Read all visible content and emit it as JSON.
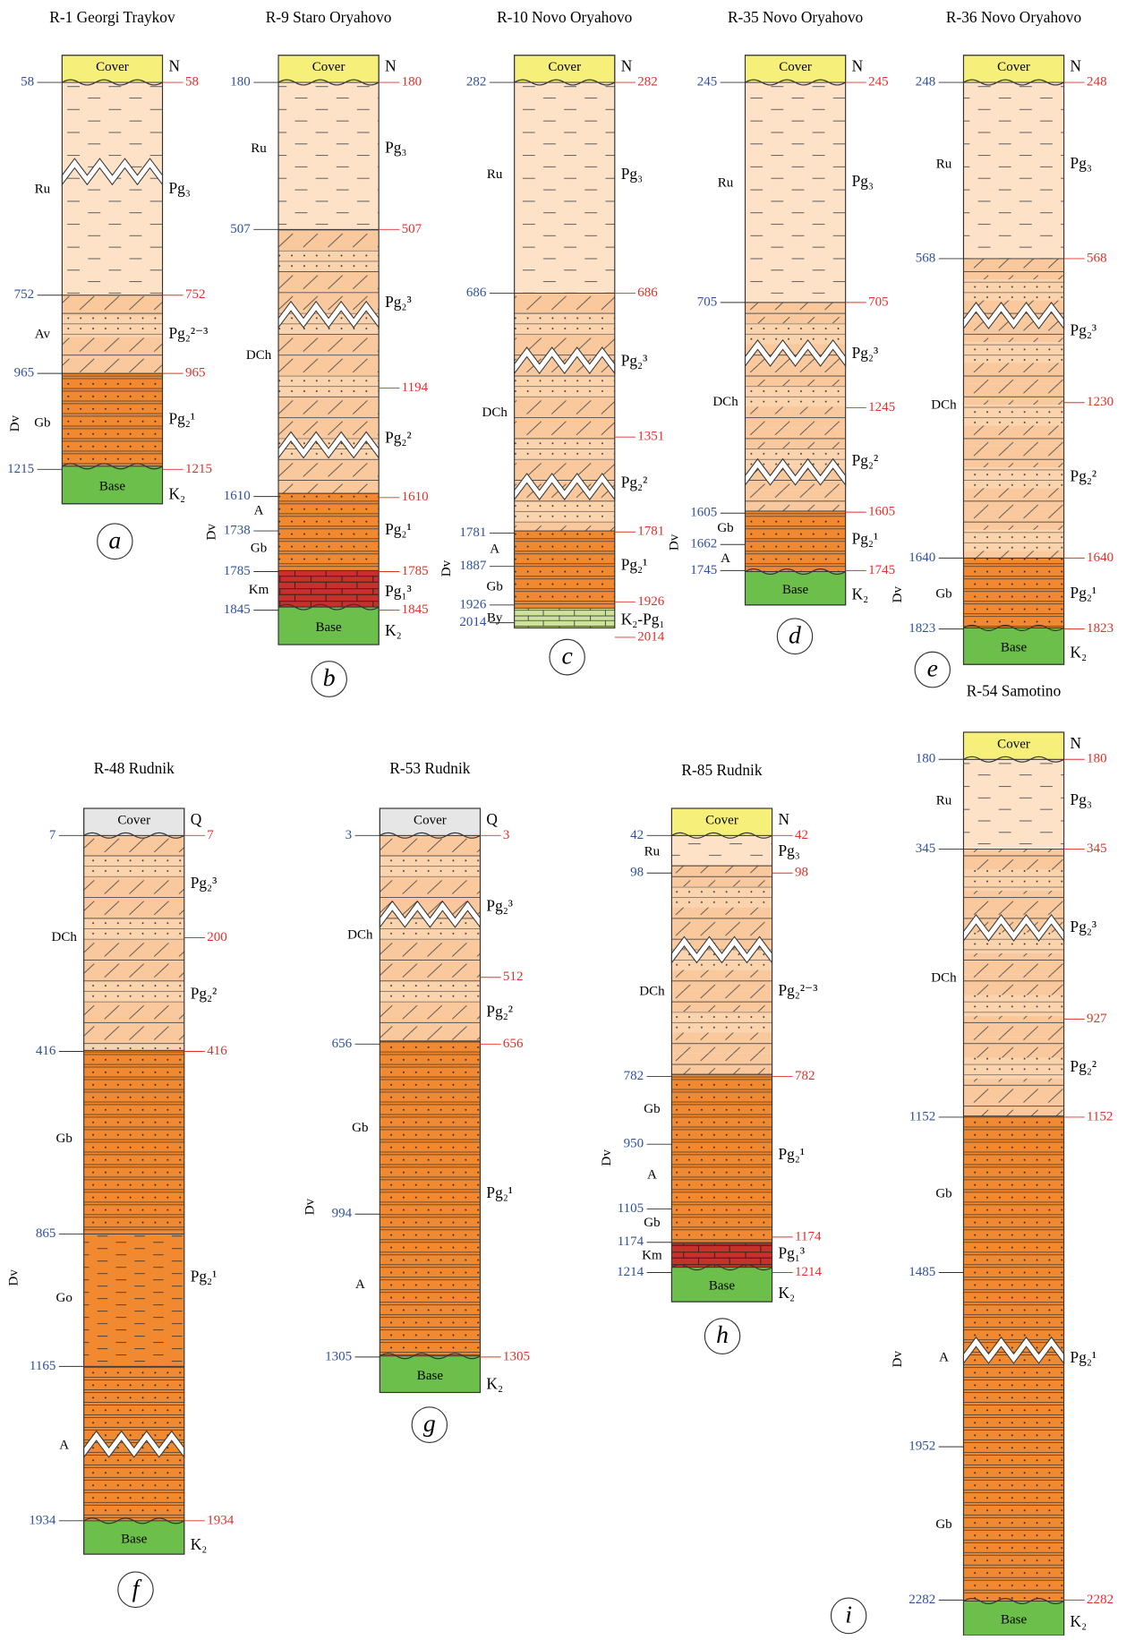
{
  "columns": [
    {
      "title": "R-1 Georgi Traykov",
      "letter": "a",
      "cover": "Cover",
      "base": "Base",
      "left_depths": [
        "58",
        "752",
        "965",
        "1215"
      ],
      "right_depths": [
        "58",
        "752",
        "965",
        "1215"
      ],
      "left_units": [
        "Ru",
        "Av",
        "Gb",
        "Dv"
      ],
      "right_units": [
        "N",
        "Pg₃",
        "Pg₂²⁻³",
        "Pg₂¹",
        "K₂"
      ]
    },
    {
      "title": "R-9 Staro Oryahovo",
      "letter": "b",
      "cover": "Cover",
      "base": "Base",
      "left_depths": [
        "180",
        "507",
        "1610",
        "1738",
        "1785",
        "1845"
      ],
      "right_depths": [
        "180",
        "507",
        "1194",
        "1610",
        "1785",
        "1845"
      ],
      "left_units": [
        "Ru",
        "DCh",
        "A",
        "Gb",
        "Km",
        "Dv"
      ],
      "right_units": [
        "N",
        "Pg₃",
        "Pg₂³",
        "Pg₂²",
        "Pg₂¹",
        "Pg₁³",
        "K₂"
      ]
    },
    {
      "title": "R-10 Novo Oryahovo",
      "letter": "c",
      "cover": "Cover",
      "left_depths": [
        "282",
        "686",
        "1781",
        "1887",
        "1926",
        "2014"
      ],
      "right_depths": [
        "282",
        "686",
        "1351",
        "1781",
        "1926",
        "2014"
      ],
      "left_units": [
        "Ru",
        "DCh",
        "A",
        "Gb",
        "By",
        "Dv"
      ],
      "right_units": [
        "N",
        "Pg₃",
        "Pg₂³",
        "Pg₂²",
        "Pg₂¹",
        "K₂-Pg₁"
      ]
    },
    {
      "title": "R-35 Novo Oryahovo",
      "letter": "d",
      "cover": "Cover",
      "base": "Base",
      "left_depths": [
        "245",
        "705",
        "1605",
        "1662",
        "1745"
      ],
      "right_depths": [
        "245",
        "705",
        "1245",
        "1605",
        "1745"
      ],
      "left_units": [
        "Ru",
        "DCh",
        "Gb",
        "A",
        "Dv"
      ],
      "right_units": [
        "N",
        "Pg₃",
        "Pg₂³",
        "Pg₂²",
        "Pg₂¹",
        "K₂"
      ]
    },
    {
      "title": "R-36 Novo Oryahovo",
      "letter": "e",
      "cover": "Cover",
      "base": "Base",
      "left_depths": [
        "248",
        "568",
        "1640",
        "1823"
      ],
      "right_depths": [
        "248",
        "568",
        "1230",
        "1640",
        "1823"
      ],
      "left_units": [
        "Ru",
        "DCh",
        "Gb",
        "Dv"
      ],
      "right_units": [
        "N",
        "Pg₃",
        "Pg₂³",
        "Pg₂²",
        "Pg₂¹",
        "K₂"
      ]
    },
    {
      "title": "R-48 Rudnik",
      "letter": "f",
      "cover": "Cover",
      "base": "Base",
      "left_depths": [
        "7",
        "416",
        "865",
        "1165",
        "1934"
      ],
      "right_depths": [
        "7",
        "200",
        "416",
        "1934"
      ],
      "left_units": [
        "DCh",
        "Gb",
        "Go",
        "A",
        "Dv"
      ],
      "right_units": [
        "Q",
        "Pg₂³",
        "Pg₂²",
        "Pg₂¹",
        "K₂"
      ]
    },
    {
      "title": "R-53 Rudnik",
      "letter": "g",
      "cover": "Cover",
      "base": "Base",
      "left_depths": [
        "3",
        "656",
        "994",
        "1305"
      ],
      "right_depths": [
        "3",
        "512",
        "656",
        "1305"
      ],
      "left_units": [
        "DCh",
        "Gb",
        "A",
        "Dv"
      ],
      "right_units": [
        "Q",
        "Pg₂³",
        "Pg₂²",
        "Pg₂¹",
        "K₂"
      ]
    },
    {
      "title": "R-85 Rudnik",
      "letter": "h",
      "cover": "Cover",
      "base": "Base",
      "left_depths": [
        "42",
        "98",
        "782",
        "950",
        "1105",
        "1174",
        "1214"
      ],
      "right_depths": [
        "42",
        "98",
        "782",
        "1174",
        "1214"
      ],
      "left_units": [
        "Ru",
        "DCh",
        "Gb",
        "A",
        "Gb",
        "Km",
        "Dv"
      ],
      "right_units": [
        "N",
        "Pg₃",
        "Pg₂²⁻³",
        "Pg₂¹",
        "Pg₁³",
        "K₂"
      ]
    },
    {
      "title": "R-54 Samotino",
      "letter": "i",
      "cover": "Cover",
      "base": "Base",
      "left_depths": [
        "180",
        "345",
        "1152",
        "1485",
        "1952",
        "2282"
      ],
      "right_depths": [
        "180",
        "345",
        "927",
        "1152",
        "2282"
      ],
      "left_units": [
        "Ru",
        "DCh",
        "Gb",
        "A",
        "Gb",
        "Dv"
      ],
      "right_units": [
        "N",
        "Pg₃",
        "Pg₂³",
        "Pg₂²",
        "Pg₂¹",
        "K₂"
      ]
    }
  ]
}
